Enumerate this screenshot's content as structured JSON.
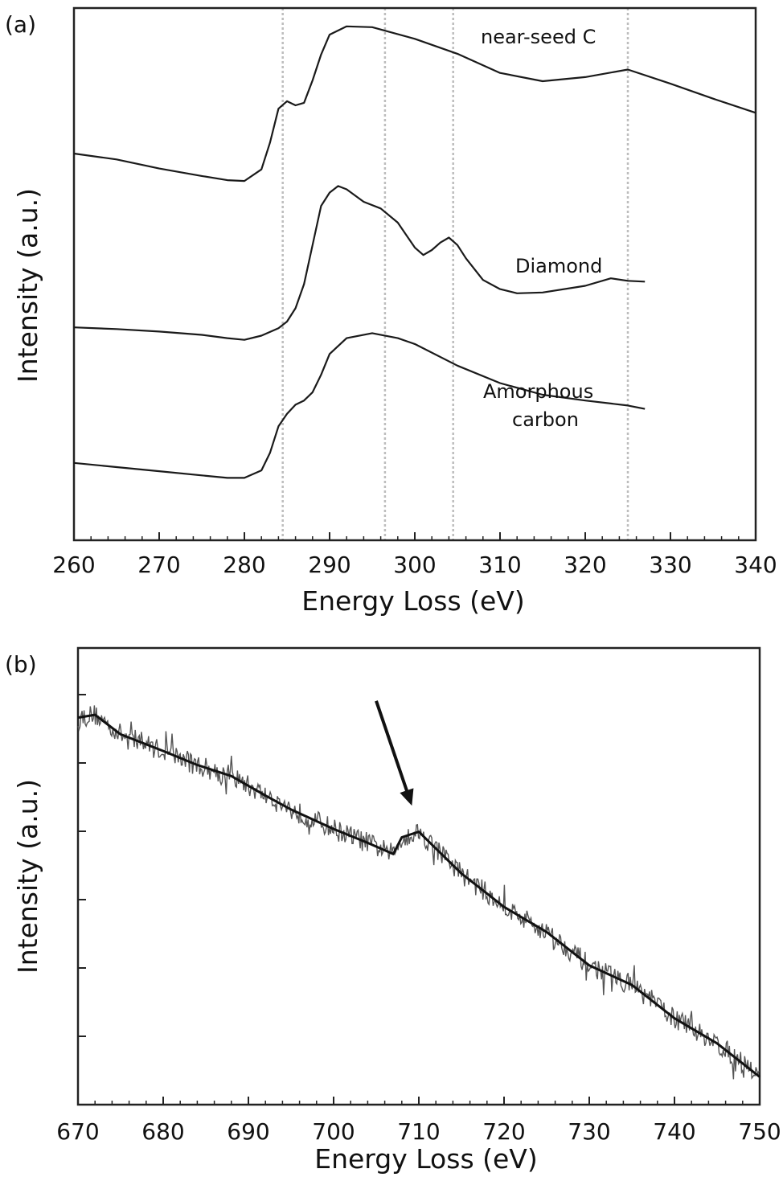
{
  "chart_data": [
    {
      "type": "line",
      "panel_label": "(a)",
      "xlabel": "Energy Loss (eV)",
      "ylabel": "Intensity (a.u.)",
      "xlim": [
        260,
        340
      ],
      "x_ticks": [
        260,
        270,
        280,
        290,
        300,
        310,
        320,
        330,
        340
      ],
      "y_ticks_labeled": false,
      "vertical_reference_lines": [
        284.5,
        296.5,
        304.5,
        325
      ],
      "reference_line_color": "#bdbdbd",
      "series": [
        {
          "name": "near-seed C",
          "x": [
            260,
            265,
            270,
            275,
            278,
            280,
            282,
            283,
            284,
            285,
            286,
            287,
            288,
            289,
            290,
            292,
            295,
            300,
            305,
            310,
            315,
            320,
            325,
            330,
            335,
            340
          ],
          "y": [
            4.65,
            4.58,
            4.47,
            4.38,
            4.33,
            4.32,
            4.46,
            4.78,
            5.19,
            5.28,
            5.23,
            5.26,
            5.53,
            5.84,
            6.08,
            6.18,
            6.17,
            6.03,
            5.85,
            5.62,
            5.52,
            5.57,
            5.66,
            5.49,
            5.31,
            5.14
          ]
        },
        {
          "name": "Diamond",
          "x": [
            260,
            265,
            270,
            275,
            278,
            280,
            282,
            284,
            285,
            286,
            287,
            288,
            289,
            290,
            291,
            292,
            294,
            296,
            298,
            300,
            301,
            302,
            303,
            304,
            305,
            306,
            308,
            310,
            312,
            315,
            320,
            323,
            325,
            327
          ],
          "y": [
            2.56,
            2.54,
            2.51,
            2.47,
            2.43,
            2.41,
            2.46,
            2.55,
            2.63,
            2.79,
            3.08,
            3.55,
            4.02,
            4.18,
            4.26,
            4.22,
            4.07,
            3.99,
            3.82,
            3.52,
            3.43,
            3.49,
            3.58,
            3.64,
            3.55,
            3.39,
            3.13,
            3.02,
            2.97,
            2.98,
            3.06,
            3.15,
            3.12,
            3.11
          ]
        },
        {
          "name": "Amorphous carbon",
          "x": [
            260,
            265,
            270,
            275,
            278,
            280,
            282,
            283,
            284,
            285,
            286,
            287,
            288,
            289,
            290,
            292,
            295,
            298,
            300,
            305,
            310,
            315,
            320,
            325,
            327
          ],
          "y": [
            0.93,
            0.88,
            0.83,
            0.78,
            0.75,
            0.75,
            0.84,
            1.05,
            1.37,
            1.52,
            1.63,
            1.68,
            1.78,
            1.99,
            2.24,
            2.43,
            2.49,
            2.43,
            2.36,
            2.1,
            1.89,
            1.75,
            1.68,
            1.62,
            1.58
          ]
        }
      ],
      "annotations": [
        "near-seed C",
        "Diamond",
        "Amorphous",
        "carbon"
      ]
    },
    {
      "type": "line",
      "panel_label": "(b)",
      "xlabel": "Energy Loss (eV)",
      "ylabel": "Intensity (a.u.)",
      "xlim": [
        670,
        750
      ],
      "x_ticks": [
        670,
        680,
        690,
        700,
        710,
        720,
        730,
        740,
        750
      ],
      "y_ticks_labeled": false,
      "noisy_trace": true,
      "series": [
        {
          "x": [
            670,
            672,
            675,
            680,
            684,
            688,
            692,
            695,
            700,
            704,
            707,
            708,
            709,
            710,
            712,
            715,
            720,
            725,
            730,
            735,
            740,
            745,
            750
          ],
          "y": [
            9.35,
            9.4,
            9.05,
            8.75,
            8.5,
            8.3,
            7.95,
            7.7,
            7.35,
            7.1,
            6.9,
            7.2,
            7.25,
            7.3,
            7.0,
            6.55,
            5.95,
            5.5,
            4.9,
            4.55,
            3.95,
            3.5,
            2.9
          ]
        }
      ],
      "arrow_annotation": {
        "from": [
          705,
          9.65
        ],
        "to": [
          709,
          7.85
        ]
      }
    }
  ]
}
